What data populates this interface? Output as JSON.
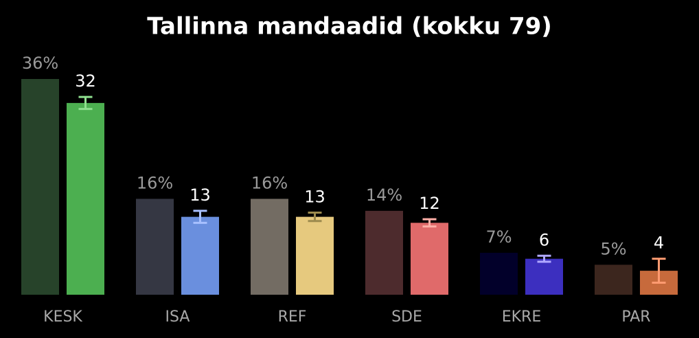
{
  "chart_data": {
    "type": "bar",
    "title": "Tallinna mandaadid (kokku 79)",
    "categories": [
      "KESK",
      "ISA",
      "REF",
      "SDE",
      "EKRE",
      "PAR"
    ],
    "series": [
      {
        "values": [
          36,
          16,
          16,
          14,
          7,
          5
        ],
        "value_labels": [
          "36%",
          "16%",
          "16%",
          "14%",
          "7%",
          "5%"
        ],
        "colors": [
          "#27432a",
          "#353743",
          "#736c63",
          "#4d2b2d",
          "#02002a",
          "#3c261e"
        ]
      },
      {
        "values": [
          32,
          13,
          13,
          12,
          6,
          4
        ],
        "errors": [
          1,
          1,
          0.7,
          0.6,
          0.5,
          2
        ],
        "colors": [
          "#4caf50",
          "#6a8fde",
          "#e6c97e",
          "#e06a6a",
          "#3c2fbf",
          "#c76a3c"
        ],
        "error_colors": [
          "#8fe08f",
          "#a8c0ff",
          "#9c8a4e",
          "#ffb0a8",
          "#b0a8ff",
          "#ff9a70"
        ]
      }
    ]
  }
}
